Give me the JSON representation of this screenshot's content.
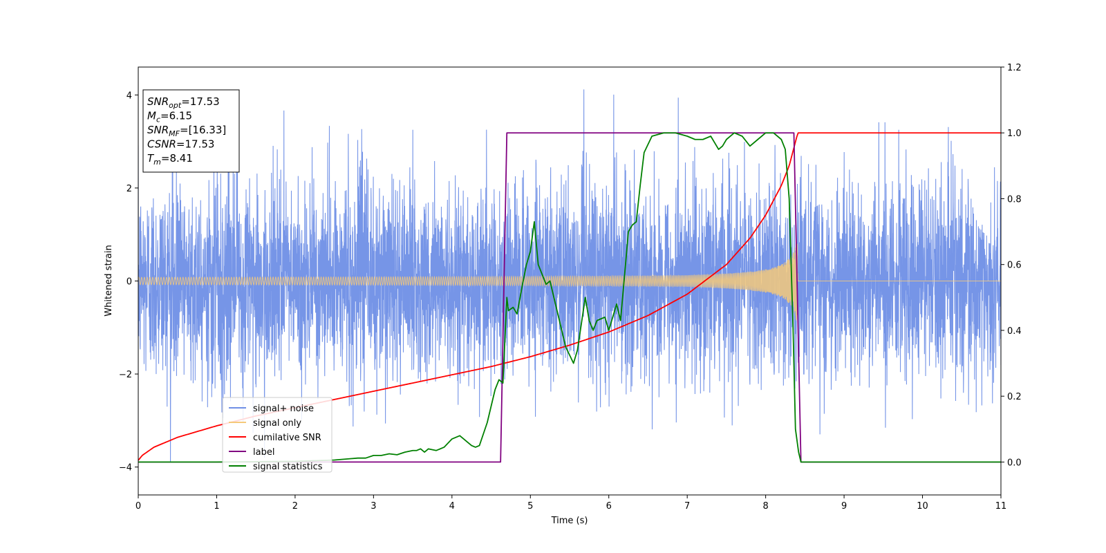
{
  "chart_data": {
    "type": "line",
    "title": "",
    "xlabel": "Time (s)",
    "ylabel": "Whitened strain",
    "xlim": [
      0,
      11
    ],
    "ylim": [
      -4.6,
      4.6
    ],
    "y2lim": [
      -0.1,
      1.2
    ],
    "x_ticks": [
      0,
      1,
      2,
      3,
      4,
      5,
      6,
      7,
      8,
      9,
      10,
      11
    ],
    "y_ticks": [
      -4,
      -2,
      0,
      2,
      4
    ],
    "y2_ticks": [
      "0.0",
      "0.2",
      "0.4",
      "0.6",
      "0.8",
      "1.0",
      "1.2"
    ],
    "grid": false,
    "legend_placement": "lower-left",
    "info_box": {
      "lines": [
        {
          "base": "SNR",
          "sub": "opt",
          "value": "=17.53"
        },
        {
          "base": "M",
          "sub": "c",
          "value": "=6.15"
        },
        {
          "base": "SNR",
          "sub": "MF",
          "value": "=[16.33]"
        },
        {
          "base": "CSNR",
          "sub": "",
          "value": "=17.53"
        },
        {
          "base": "T",
          "sub": "m",
          "value": "=8.41"
        }
      ]
    },
    "series": [
      {
        "name": "signal+ noise",
        "color": "#6f8fe6",
        "axis": "left",
        "kind": "noise",
        "noise_sigma": 1.0,
        "extreme_range": [
          -4.15,
          4.2
        ]
      },
      {
        "name": "signal only",
        "color": "#f5c97a",
        "axis": "left",
        "kind": "chirp",
        "amplitude_start": 0.08,
        "amplitude_peak": 1.0,
        "merger_time": 8.41
      },
      {
        "name": "cumilative SNR",
        "color": "#ff0000",
        "axis": "right",
        "x": [
          0,
          0.05,
          0.2,
          0.5,
          1,
          1.5,
          2,
          2.5,
          3,
          3.5,
          4,
          4.5,
          5,
          5.5,
          6,
          6.5,
          7,
          7.5,
          7.8,
          8.0,
          8.2,
          8.3,
          8.41,
          11
        ],
        "y": [
          0.005,
          0.02,
          0.045,
          0.075,
          0.11,
          0.14,
          0.165,
          0.19,
          0.215,
          0.24,
          0.265,
          0.29,
          0.32,
          0.355,
          0.395,
          0.445,
          0.51,
          0.6,
          0.68,
          0.75,
          0.84,
          0.9,
          1.0,
          1.0
        ]
      },
      {
        "name": "label",
        "color": "#800080",
        "axis": "right",
        "x": [
          0,
          4.62,
          4.7,
          8.36,
          8.45,
          11
        ],
        "y": [
          0.0,
          0.0,
          1.0,
          1.0,
          0.0,
          0.0
        ]
      },
      {
        "name": "signal statistics",
        "color": "#008000",
        "axis": "right",
        "x": [
          0,
          1,
          2,
          2.5,
          2.7,
          2.8,
          2.9,
          3,
          3.1,
          3.2,
          3.3,
          3.4,
          3.5,
          3.55,
          3.6,
          3.65,
          3.7,
          3.8,
          3.9,
          4.0,
          4.1,
          4.2,
          4.25,
          4.3,
          4.35,
          4.45,
          4.55,
          4.6,
          4.65,
          4.7,
          4.72,
          4.78,
          4.83,
          4.9,
          4.95,
          5.0,
          5.05,
          5.1,
          5.2,
          5.25,
          5.35,
          5.45,
          5.55,
          5.6,
          5.7,
          5.75,
          5.8,
          5.85,
          5.95,
          6.0,
          6.1,
          6.15,
          6.25,
          6.3,
          6.35,
          6.4,
          6.45,
          6.55,
          6.7,
          6.85,
          7.0,
          7.1,
          7.2,
          7.3,
          7.4,
          7.45,
          7.5,
          7.55,
          7.6,
          7.7,
          7.8,
          7.9,
          8.0,
          8.1,
          8.2,
          8.25,
          8.3,
          8.35,
          8.38,
          8.42,
          8.45,
          11
        ],
        "y": [
          0.0,
          0.0,
          0.002,
          0.006,
          0.01,
          0.012,
          0.012,
          0.02,
          0.02,
          0.025,
          0.022,
          0.03,
          0.035,
          0.035,
          0.04,
          0.03,
          0.04,
          0.035,
          0.045,
          0.07,
          0.08,
          0.06,
          0.05,
          0.045,
          0.05,
          0.12,
          0.22,
          0.25,
          0.24,
          0.5,
          0.46,
          0.47,
          0.45,
          0.54,
          0.6,
          0.64,
          0.73,
          0.6,
          0.54,
          0.55,
          0.45,
          0.35,
          0.3,
          0.34,
          0.5,
          0.43,
          0.4,
          0.43,
          0.44,
          0.4,
          0.48,
          0.43,
          0.7,
          0.72,
          0.73,
          0.84,
          0.94,
          0.99,
          1.0,
          1.0,
          0.99,
          0.98,
          0.98,
          0.99,
          0.95,
          0.96,
          0.98,
          0.99,
          1.0,
          0.99,
          0.96,
          0.98,
          1.0,
          1.0,
          0.98,
          0.95,
          0.8,
          0.4,
          0.1,
          0.03,
          0.0,
          0.0
        ]
      }
    ]
  }
}
